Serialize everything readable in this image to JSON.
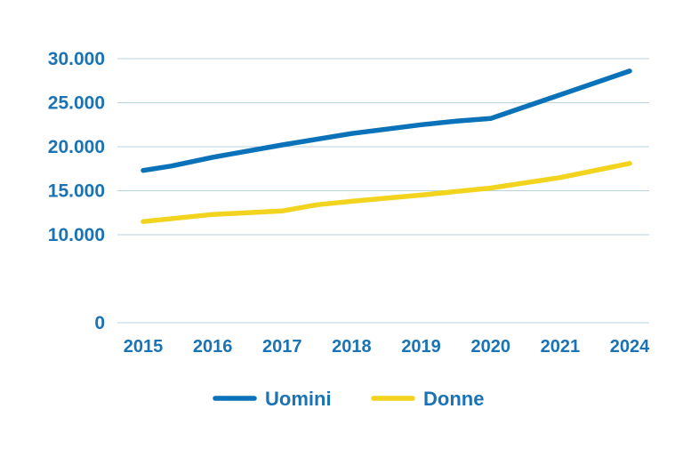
{
  "chart_data": {
    "type": "line",
    "categories": [
      "2015",
      "2016",
      "2017",
      "2018",
      "2019",
      "2020",
      "2021",
      "2024"
    ],
    "yticks": [
      {
        "value": 0,
        "label": "0"
      },
      {
        "value": 10000,
        "label": "10.000"
      },
      {
        "value": 15000,
        "label": "15.000"
      },
      {
        "value": 20000,
        "label": "20.000"
      },
      {
        "value": 25000,
        "label": "25.000"
      },
      {
        "value": 30000,
        "label": "30.000"
      }
    ],
    "ylim": [
      0,
      30000
    ],
    "grid": true,
    "legend_position": "bottom",
    "series": [
      {
        "name": "Uomini",
        "color": "#0a72b8",
        "points": [
          {
            "x": 0,
            "y": 17300
          },
          {
            "x": 0.4,
            "y": 17800
          },
          {
            "x": 1,
            "y": 18800
          },
          {
            "x": 2,
            "y": 20200
          },
          {
            "x": 3,
            "y": 21500
          },
          {
            "x": 4,
            "y": 22500
          },
          {
            "x": 4.5,
            "y": 22900
          },
          {
            "x": 5,
            "y": 23200
          },
          {
            "x": 6,
            "y": 25900
          },
          {
            "x": 7,
            "y": 28600
          }
        ]
      },
      {
        "name": "Donne",
        "color": "#f2d41e",
        "points": [
          {
            "x": 0,
            "y": 11500
          },
          {
            "x": 1,
            "y": 12300
          },
          {
            "x": 2,
            "y": 12700
          },
          {
            "x": 2.5,
            "y": 13400
          },
          {
            "x": 3,
            "y": 13800
          },
          {
            "x": 4,
            "y": 14500
          },
          {
            "x": 5,
            "y": 15300
          },
          {
            "x": 6,
            "y": 16500
          },
          {
            "x": 7,
            "y": 18100
          }
        ]
      }
    ]
  }
}
